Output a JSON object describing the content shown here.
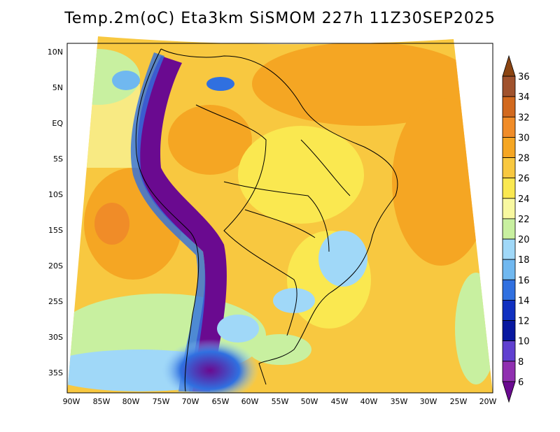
{
  "title": "Temp.2m(oC) Eta3km SiSMOM 227h 11Z30SEP2025",
  "lat_labels": [
    "10N",
    "5N",
    "EQ",
    "5S",
    "10S",
    "15S",
    "20S",
    "25S",
    "30S",
    "35S"
  ],
  "lon_labels": [
    "90W",
    "85W",
    "80W",
    "75W",
    "70W",
    "65W",
    "60W",
    "55W",
    "50W",
    "45W",
    "40W",
    "35W",
    "30W",
    "25W",
    "20W"
  ],
  "colorbar": {
    "labels": [
      "36",
      "34",
      "32",
      "30",
      "28",
      "26",
      "24",
      "22",
      "20",
      "18",
      "16",
      "14",
      "12",
      "10",
      "8",
      "6"
    ],
    "colors": [
      "#8B4513",
      "#A0522D",
      "#D2691E",
      "#F08C28",
      "#F5A623",
      "#F8C840",
      "#FAE850",
      "#F8F8A0",
      "#C8F0A0",
      "#A0D8F8",
      "#70B8F0",
      "#3070E0",
      "#1030C0",
      "#0818A0",
      "#6040D0",
      "#9030B0",
      "#6A0A90"
    ]
  }
}
